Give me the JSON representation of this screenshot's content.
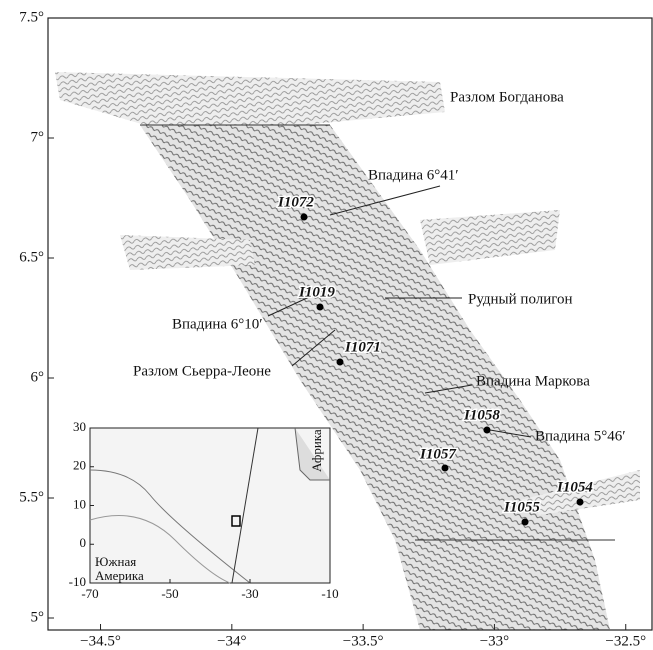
{
  "map": {
    "lat_ticks": [
      {
        "value": 7.5,
        "label": "7.5°"
      },
      {
        "value": 7,
        "label": "7°"
      },
      {
        "value": 6.5,
        "label": "6.5°"
      },
      {
        "value": 6,
        "label": "6°"
      },
      {
        "value": 5.5,
        "label": "5.5°"
      },
      {
        "value": 5,
        "label": "5°"
      }
    ],
    "lon_ticks": [
      {
        "value": -34.5,
        "label": "−34.5°"
      },
      {
        "value": -34,
        "label": "−34°"
      },
      {
        "value": -33.5,
        "label": "−33.5°"
      },
      {
        "value": -33,
        "label": "−33°"
      },
      {
        "value": -32.5,
        "label": "−32.5°"
      }
    ],
    "lat_range": [
      4.95,
      7.5
    ],
    "lon_range": [
      -34.7,
      -32.4
    ],
    "features": [
      "Разлом Богданова",
      "Впадина 6°41′",
      "Рудный полигон",
      "Впадина 6°10′",
      "Разлом Сьерра-Леоне",
      "Впадина Маркова",
      "Впадина 5°46′"
    ],
    "stations": [
      "I1072",
      "I1019",
      "I1071",
      "I1058",
      "I1057",
      "I1055",
      "I1054"
    ],
    "inset": {
      "xlim": [
        -70,
        -10
      ],
      "ylim": [
        -10,
        30
      ],
      "xticks": [
        -70,
        -50,
        -30,
        -10
      ],
      "yticks": [
        30,
        20,
        10,
        0,
        -10
      ],
      "south_america": [
        "Южная",
        "Америка"
      ],
      "africa": "Африка"
    }
  }
}
